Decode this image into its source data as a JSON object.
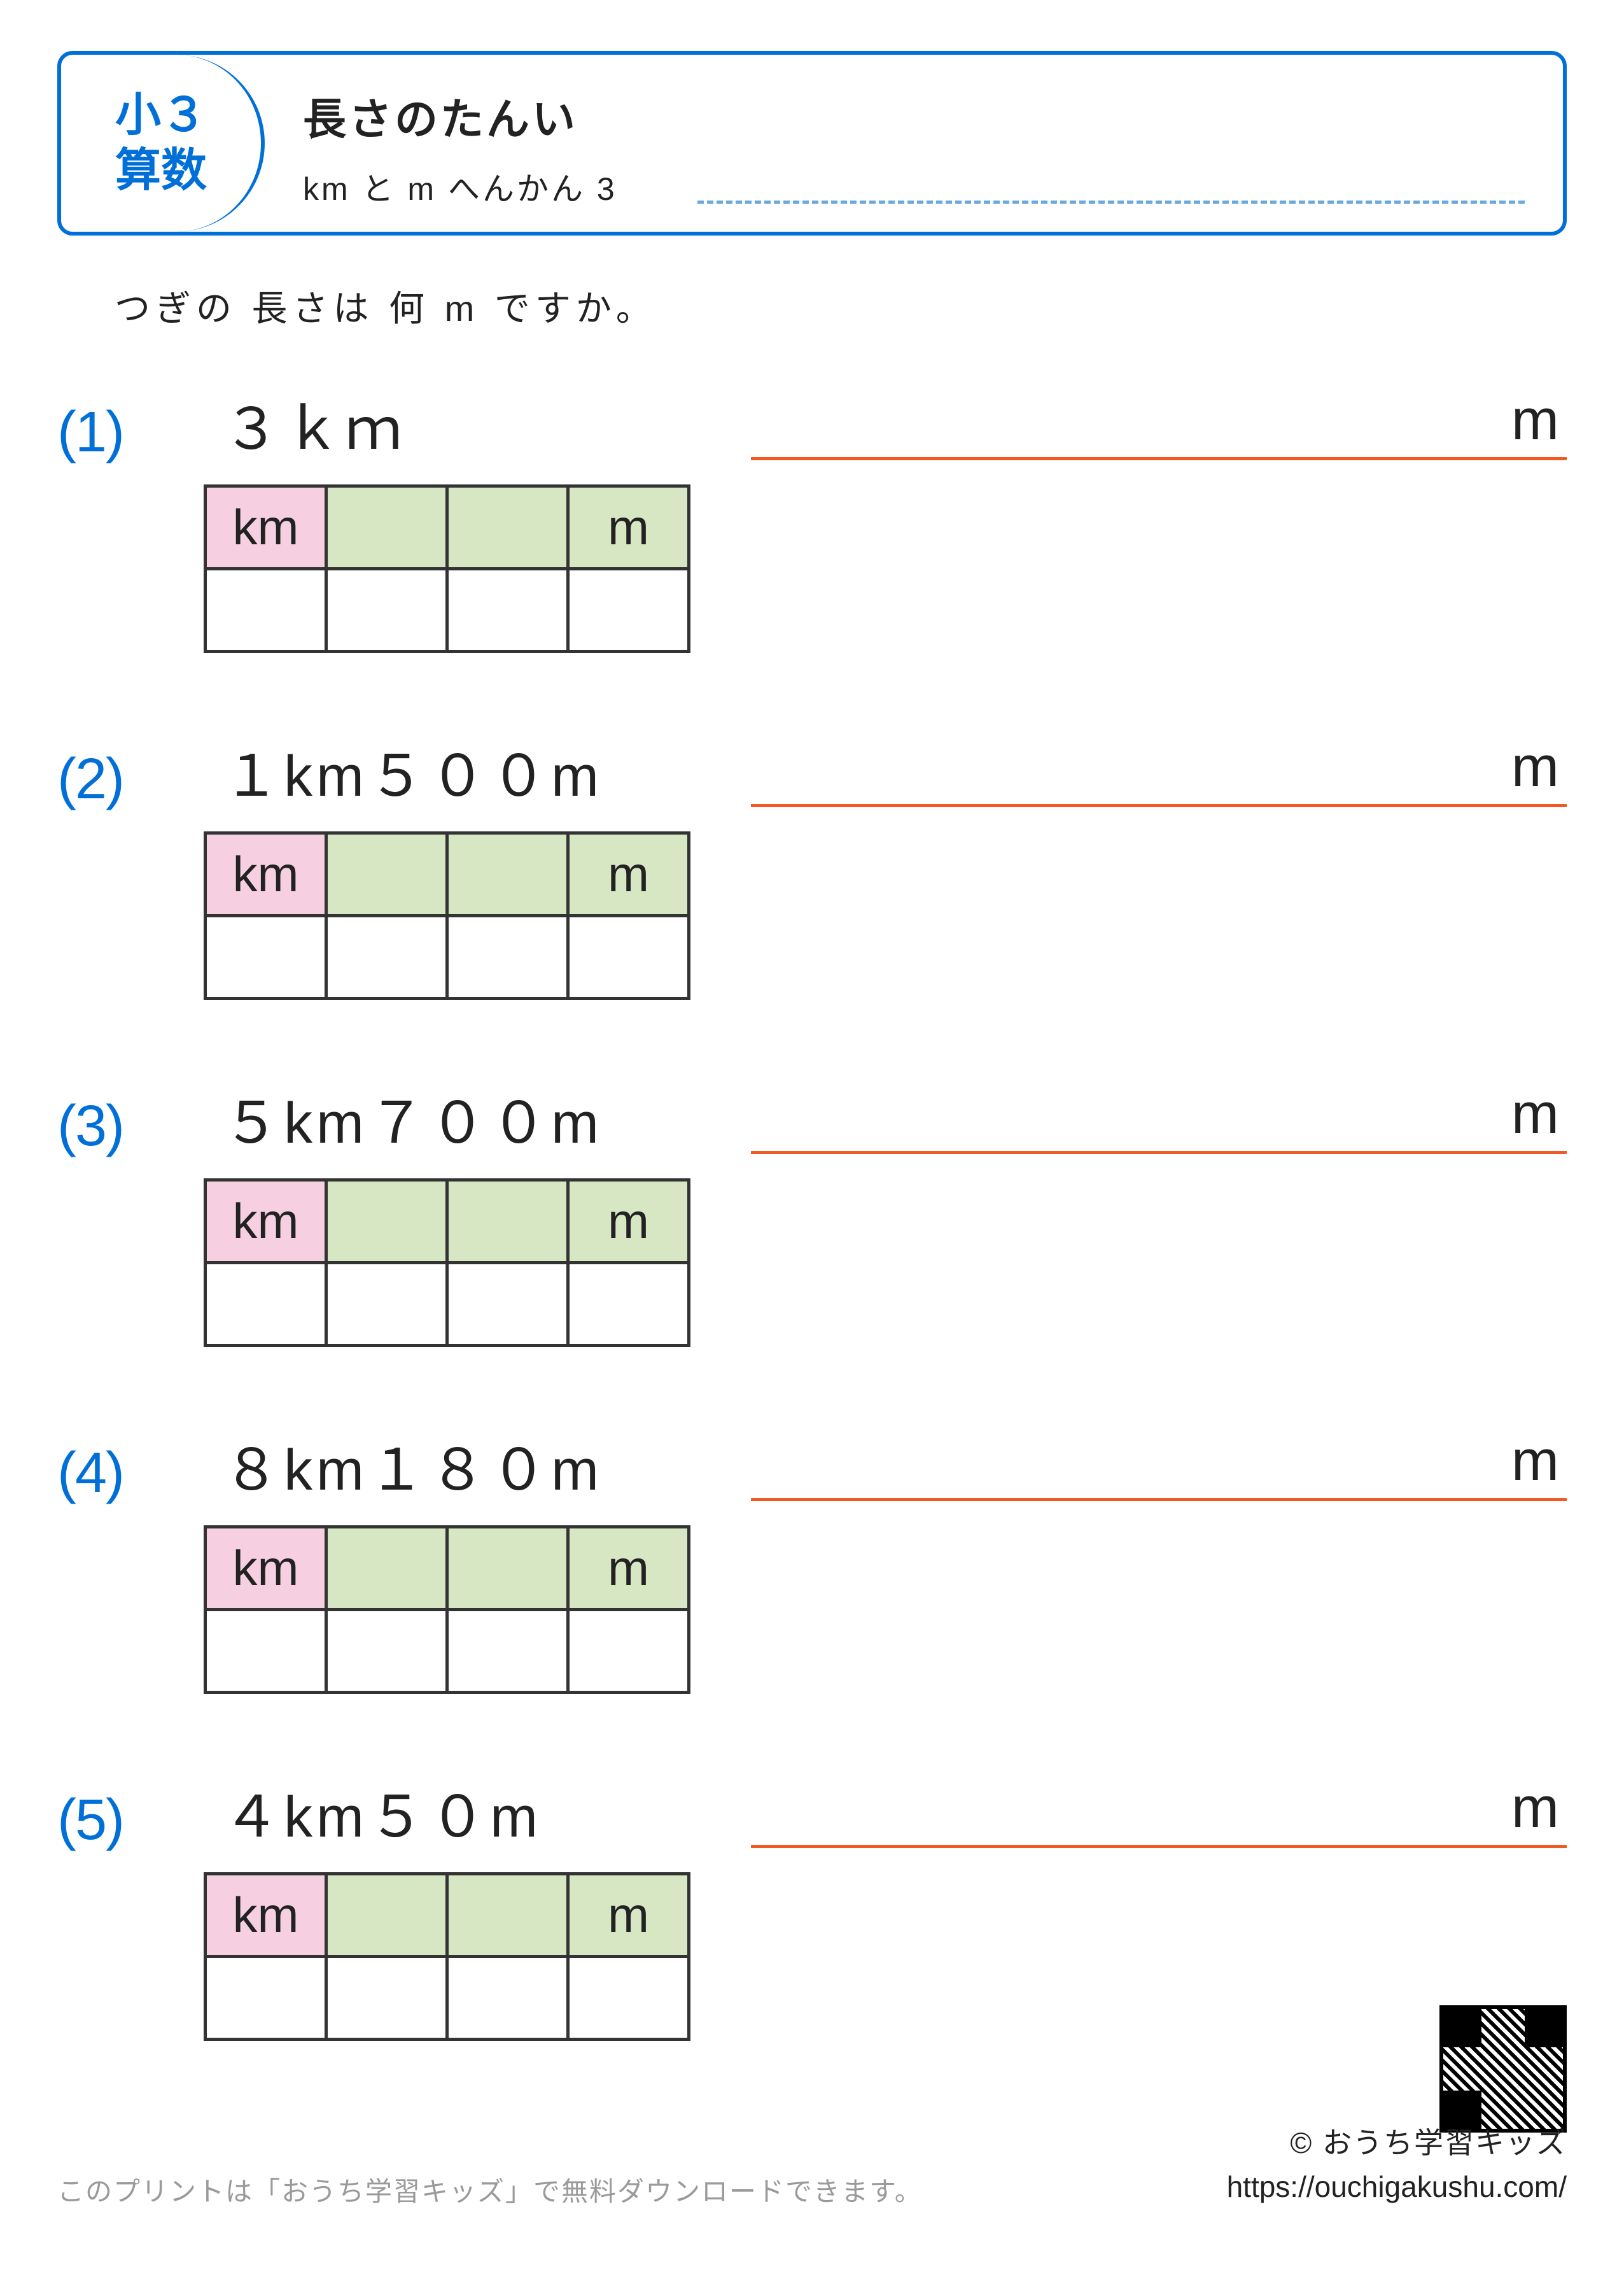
{
  "header": {
    "grade_line1": "小３",
    "grade_line2": "算数",
    "title": "長さのたんい",
    "subtitle": "km と m へんかん 3"
  },
  "instruction": "つぎの 長さは 何 m ですか。",
  "unit_labels": {
    "km": "km",
    "m": "m"
  },
  "answer_unit": "m",
  "questions": [
    {
      "num": "(1)",
      "text": "３ｋｍ"
    },
    {
      "num": "(2)",
      "text": "１km５００m"
    },
    {
      "num": "(3)",
      "text": "５km７００m"
    },
    {
      "num": "(4)",
      "text": "８km１８０m"
    },
    {
      "num": "(5)",
      "text": "４km５０m"
    }
  ],
  "footer": {
    "left": "このプリントは「おうち学習キッズ」で無料ダウンロードできます。",
    "copyright": "© おうち学習キッズ",
    "url": "https://ouchigakushu.com/"
  },
  "style": {
    "accent_blue": "#0070d8",
    "answer_line": "#f15a24",
    "km_cell_bg": "#f6cfe0",
    "mid_cell_bg": "#d7e7c3",
    "name_line_dash": "#6aa9e0"
  }
}
